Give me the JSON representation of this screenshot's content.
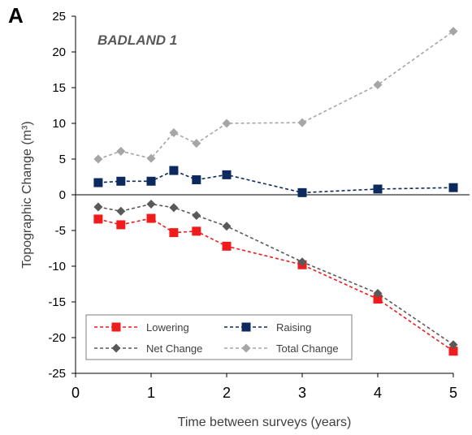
{
  "panel_letter": "A",
  "chart_data": {
    "type": "line",
    "title": "",
    "subtitle": "BADLAND 1",
    "xlabel": "Time between surveys (years)",
    "ylabel": "Topographic Change (m³)",
    "xlim": [
      0,
      5
    ],
    "ylim": [
      -25,
      25
    ],
    "xticks": [
      0,
      1,
      2,
      3,
      4,
      5
    ],
    "yticks": [
      -25,
      -20,
      -15,
      -10,
      -5,
      0,
      5,
      10,
      15,
      20,
      25
    ],
    "grid": false,
    "legend_position": "bottom-left",
    "x": [
      0.3,
      0.6,
      1.0,
      1.3,
      1.6,
      2.0,
      3.0,
      4.0,
      5.0
    ],
    "series": [
      {
        "name": "Lowering",
        "color": "#ee1c1c",
        "marker": "square",
        "values": [
          -3.4,
          -4.2,
          -3.3,
          -5.3,
          -5.1,
          -7.2,
          -9.8,
          -14.6,
          -21.9
        ]
      },
      {
        "name": "Raising",
        "color": "#0d2a5e",
        "marker": "square",
        "values": [
          1.7,
          1.9,
          1.9,
          3.4,
          2.1,
          2.8,
          0.3,
          0.8,
          1.0
        ]
      },
      {
        "name": "Net Change",
        "color": "#595959",
        "marker": "diamond",
        "values": [
          -1.7,
          -2.3,
          -1.3,
          -1.8,
          -2.9,
          -4.4,
          -9.4,
          -13.8,
          -21.0
        ]
      },
      {
        "name": "Total Change",
        "color": "#a6a6a6",
        "marker": "diamond",
        "values": [
          5.0,
          6.1,
          5.1,
          8.7,
          7.2,
          10.0,
          10.1,
          15.4,
          22.9
        ]
      }
    ]
  }
}
